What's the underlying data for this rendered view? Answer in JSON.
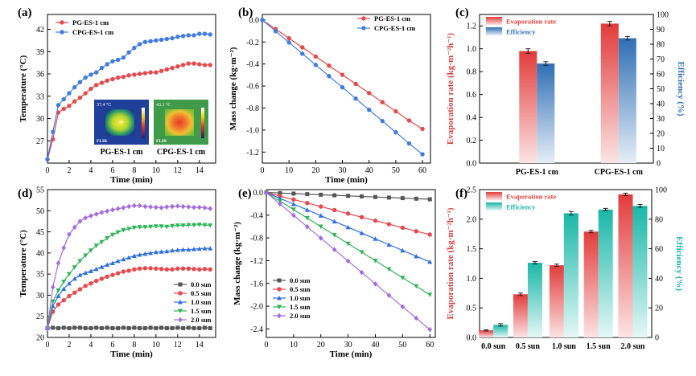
{
  "chart_data": [
    {
      "panel": "(a)",
      "type": "line",
      "xlabel": "Time (min)",
      "ylabel": "Temperature (°C)",
      "xlim": [
        0,
        15.5
      ],
      "ylim": [
        24,
        44
      ],
      "xticks": [
        0,
        2,
        4,
        6,
        8,
        10,
        12,
        14
      ],
      "yticks": [
        27,
        30,
        33,
        36,
        39,
        42
      ],
      "legend": "top-left",
      "colors": {
        "PG-ES-1 cm": "#e8474b",
        "CPG-ES-1 cm": "#3f7be3"
      },
      "series": [
        {
          "name": "PG-ES-1 cm",
          "x": [
            0,
            0.5,
            1,
            1.5,
            2,
            2.5,
            3,
            3.5,
            4,
            4.5,
            5,
            5.5,
            6,
            6.5,
            7,
            7.5,
            8,
            8.5,
            9,
            9.5,
            10,
            10.5,
            11,
            11.5,
            12,
            12.5,
            13,
            13.5,
            14,
            14.5,
            15
          ],
          "y": [
            24.5,
            27.2,
            30.8,
            31.3,
            31.7,
            32.3,
            32.8,
            33.4,
            34,
            34.5,
            34.8,
            35.1,
            35.3,
            35.5,
            35.6,
            35.8,
            35.9,
            36,
            36.1,
            36.2,
            36.2,
            36.4,
            36.6,
            36.8,
            37,
            37.2,
            37.4,
            37.4,
            37.3,
            37.2,
            37.2
          ]
        },
        {
          "name": "CPG-ES-1 cm",
          "x": [
            0,
            0.5,
            1,
            1.5,
            2,
            2.5,
            3,
            3.5,
            4,
            4.5,
            5,
            5.5,
            6,
            6.5,
            7,
            7.5,
            8,
            8.5,
            9,
            9.5,
            10,
            10.5,
            11,
            11.5,
            12,
            12.5,
            13,
            13.5,
            14,
            14.5,
            15
          ],
          "y": [
            24.5,
            28.2,
            31.8,
            32.6,
            33.4,
            34.2,
            34.9,
            35.5,
            35.9,
            36.2,
            36.8,
            37.3,
            37.7,
            37.9,
            38.2,
            38.9,
            39.5,
            40,
            40.3,
            40.4,
            40.5,
            40.6,
            40.7,
            40.8,
            41,
            41.1,
            41.2,
            41.2,
            41.4,
            41.4,
            41.3
          ]
        }
      ],
      "insets": [
        {
          "label": "PG-ES-1 cm",
          "readout": "37.4 °C",
          "brand": "FLIR"
        },
        {
          "label": "CPG-ES-1 cm",
          "readout": "43.1 °C",
          "brand": "FLIR"
        }
      ]
    },
    {
      "panel": "(b)",
      "type": "line",
      "xlabel": "Time (min)",
      "ylabel": "Mass change (kg·m⁻²)",
      "xlim": [
        0,
        63
      ],
      "ylim": [
        -1.3,
        0.05
      ],
      "xticks": [
        0,
        10,
        20,
        30,
        40,
        50,
        60
      ],
      "yticks": [
        0.0,
        -0.2,
        -0.4,
        -0.6,
        -0.8,
        -1.0,
        -1.2
      ],
      "legend": "top-right",
      "colors": {
        "PG-ES-1 cm": "#e8474b",
        "CPG-ES-1 cm": "#3f7be3"
      },
      "series": [
        {
          "name": "PG-ES-1 cm",
          "x": [
            0,
            5,
            10,
            15,
            20,
            25,
            30,
            35,
            40,
            45,
            50,
            55,
            60
          ],
          "y": [
            0,
            -0.083,
            -0.166,
            -0.249,
            -0.332,
            -0.415,
            -0.498,
            -0.581,
            -0.664,
            -0.747,
            -0.83,
            -0.913,
            -0.99
          ]
        },
        {
          "name": "CPG-ES-1 cm",
          "x": [
            0,
            5,
            10,
            15,
            20,
            25,
            30,
            35,
            40,
            45,
            50,
            55,
            60
          ],
          "y": [
            0,
            -0.102,
            -0.204,
            -0.306,
            -0.408,
            -0.51,
            -0.612,
            -0.714,
            -0.816,
            -0.918,
            -1.02,
            -1.122,
            -1.22
          ]
        }
      ]
    },
    {
      "panel": "(c)",
      "type": "bar",
      "categories": [
        "PG-ES-1 cm",
        "CPG-ES-1 cm"
      ],
      "ylabel": "Evaporation rate (kg·m⁻²h⁻¹)",
      "y2label": "Efficiency (%)",
      "ylim": [
        0,
        1.3
      ],
      "y2lim": [
        0,
        100
      ],
      "yticks": [
        0.0,
        0.2,
        0.4,
        0.6,
        0.8,
        1.0,
        1.2
      ],
      "y2ticks": [
        0,
        10,
        20,
        30,
        40,
        50,
        60,
        70,
        80,
        90,
        100
      ],
      "legend": "top-left",
      "colors": {
        "Evaporation rate": "#e23b3b",
        "Efficiency": "#2f6fb5"
      },
      "series": [
        {
          "name": "Evaporation rate",
          "axis": "left",
          "values": [
            0.98,
            1.22
          ],
          "errors": [
            0.02,
            0.02
          ]
        },
        {
          "name": "Efficiency",
          "axis": "right",
          "values": [
            67,
            84
          ],
          "errors": [
            1.2,
            1.2
          ]
        }
      ]
    },
    {
      "panel": "(d)",
      "type": "line",
      "xlabel": "Time (min)",
      "ylabel": "Temperature (°C)",
      "xlim": [
        0,
        15.5
      ],
      "ylim": [
        20,
        55
      ],
      "xticks": [
        0,
        2,
        4,
        6,
        8,
        10,
        12,
        14
      ],
      "yticks": [
        20,
        25,
        30,
        35,
        40,
        45,
        50,
        55
      ],
      "legend": "bottom-right",
      "series": [
        {
          "name": "0.0 sun",
          "marker": "square",
          "color": "#555555",
          "x": [
            0,
            0.5,
            1,
            1.5,
            2,
            2.5,
            3,
            3.5,
            4,
            4.5,
            5,
            5.5,
            6,
            6.5,
            7,
            7.5,
            8,
            8.5,
            9,
            9.5,
            10,
            10.5,
            11,
            11.5,
            12,
            12.5,
            13,
            13.5,
            14,
            14.5,
            15
          ],
          "y": [
            22.2,
            22.3,
            22.2,
            22.3,
            22.2,
            22.3,
            22.3,
            22.2,
            22.2,
            22.3,
            22.2,
            22.3,
            22.2,
            22.2,
            22.3,
            22.2,
            22.3,
            22.2,
            22.2,
            22.3,
            22.2,
            22.3,
            22.2,
            22.2,
            22.3,
            22.2,
            22.3,
            22.2,
            22.2,
            22.3,
            22.2
          ]
        },
        {
          "name": "0.5 sun",
          "marker": "circle",
          "color": "#e8474b",
          "x": [
            0,
            0.5,
            1,
            1.5,
            2,
            2.5,
            3,
            3.5,
            4,
            4.5,
            5,
            5.5,
            6,
            6.5,
            7,
            7.5,
            8,
            8.5,
            9,
            9.5,
            10,
            10.5,
            11,
            11.5,
            12,
            12.5,
            13,
            13.5,
            14,
            14.5,
            15
          ],
          "y": [
            22.2,
            26.1,
            27.8,
            28.8,
            29.8,
            30.6,
            31.4,
            32.2,
            32.8,
            33.4,
            33.9,
            34.4,
            34.8,
            35.2,
            35.6,
            35.8,
            36.1,
            36.3,
            36.4,
            36.4,
            36.3,
            36.2,
            36.1,
            36.1,
            36.3,
            36.3,
            36.3,
            36.2,
            36.1,
            36.2,
            36.1
          ]
        },
        {
          "name": "1.0 sun",
          "marker": "triangle-up",
          "color": "#2f6fe0",
          "x": [
            0,
            0.5,
            1,
            1.5,
            2,
            2.5,
            3,
            3.5,
            4,
            4.5,
            5,
            5.5,
            6,
            6.5,
            7,
            7.5,
            8,
            8.5,
            9,
            9.5,
            10,
            10.5,
            11,
            11.5,
            12,
            12.5,
            13,
            13.5,
            14,
            14.5,
            15
          ],
          "y": [
            22.2,
            27.4,
            29.8,
            31.5,
            32.8,
            33.9,
            34.8,
            35.3,
            35.7,
            36.2,
            36.7,
            37.2,
            37.6,
            38.1,
            38.5,
            38.9,
            39.3,
            39.6,
            39.8,
            40,
            40.2,
            40.3,
            40.4,
            40.6,
            40.7,
            40.8,
            40.8,
            40.9,
            41,
            41.1,
            41.1
          ]
        },
        {
          "name": "1.5 sun",
          "marker": "triangle-down",
          "color": "#2eb356",
          "x": [
            0,
            0.5,
            1,
            1.5,
            2,
            2.5,
            3,
            3.5,
            4,
            4.5,
            5,
            5.5,
            6,
            6.5,
            7,
            7.5,
            8,
            8.5,
            9,
            9.5,
            10,
            10.5,
            11,
            11.5,
            12,
            12.5,
            13,
            13.5,
            14,
            14.5,
            15
          ],
          "y": [
            22.2,
            28.5,
            31.1,
            33.2,
            35,
            36.6,
            38.1,
            39.4,
            40.6,
            41.7,
            42.6,
            43.5,
            44.3,
            44.9,
            45.4,
            45.7,
            46,
            46.1,
            46.1,
            46.2,
            46.3,
            46.3,
            46.2,
            46.4,
            46.5,
            46.5,
            46.6,
            46.6,
            46.7,
            46.6,
            46.5
          ]
        },
        {
          "name": "2.0 sun",
          "marker": "diamond",
          "color": "#a46be0",
          "x": [
            0,
            0.5,
            1,
            1.5,
            2,
            2.5,
            3,
            3.5,
            4,
            4.5,
            5,
            5.5,
            6,
            6.5,
            7,
            7.5,
            8,
            8.5,
            9,
            9.5,
            10,
            10.5,
            11,
            11.5,
            12,
            12.5,
            13,
            13.5,
            14,
            14.5,
            15
          ],
          "y": [
            22.2,
            31.9,
            37.6,
            41.2,
            44.4,
            46.1,
            47.5,
            48.3,
            48.8,
            49.2,
            49.6,
            49.9,
            50.2,
            50.5,
            50.7,
            51,
            51.2,
            51.2,
            51,
            50.9,
            50.8,
            50.7,
            50.9,
            51,
            51.1,
            51,
            50.9,
            50.8,
            50.8,
            50.7,
            50.5
          ]
        }
      ]
    },
    {
      "panel": "(e)",
      "type": "line",
      "xlabel": "Time (min)",
      "ylabel": "Mass change (kg·m⁻²)",
      "xlim": [
        0,
        62
      ],
      "ylim": [
        -2.55,
        0.05
      ],
      "xticks": [
        0,
        10,
        20,
        30,
        40,
        50,
        60
      ],
      "yticks": [
        0.0,
        -0.4,
        -0.8,
        -1.2,
        -1.6,
        -2.0,
        -2.4
      ],
      "legend": "bottom-left",
      "series": [
        {
          "name": "0.0 sun",
          "marker": "square",
          "color": "#555555",
          "x": [
            0,
            5,
            10,
            15,
            20,
            25,
            30,
            35,
            40,
            45,
            50,
            55,
            60
          ],
          "y": [
            0,
            -0.01,
            -0.02,
            -0.03,
            -0.04,
            -0.05,
            -0.06,
            -0.07,
            -0.08,
            -0.09,
            -0.1,
            -0.11,
            -0.12
          ]
        },
        {
          "name": "0.5 sun",
          "marker": "circle",
          "color": "#e8474b",
          "x": [
            0,
            5,
            10,
            15,
            20,
            25,
            30,
            35,
            40,
            45,
            50,
            55,
            60
          ],
          "y": [
            0,
            -0.062,
            -0.124,
            -0.186,
            -0.248,
            -0.31,
            -0.372,
            -0.434,
            -0.496,
            -0.558,
            -0.62,
            -0.682,
            -0.74
          ]
        },
        {
          "name": "1.0 sun",
          "marker": "triangle-up",
          "color": "#2f6fe0",
          "x": [
            0,
            5,
            10,
            15,
            20,
            25,
            30,
            35,
            40,
            45,
            50,
            55,
            60
          ],
          "y": [
            0,
            -0.102,
            -0.204,
            -0.306,
            -0.408,
            -0.51,
            -0.612,
            -0.714,
            -0.816,
            -0.918,
            -1.02,
            -1.122,
            -1.22
          ]
        },
        {
          "name": "1.5 sun",
          "marker": "triangle-down",
          "color": "#2eb356",
          "x": [
            0,
            5,
            10,
            15,
            20,
            25,
            30,
            35,
            40,
            45,
            50,
            55,
            60
          ],
          "y": [
            0,
            -0.15,
            -0.3,
            -0.45,
            -0.6,
            -0.75,
            -0.9,
            -1.05,
            -1.2,
            -1.35,
            -1.5,
            -1.65,
            -1.8
          ]
        },
        {
          "name": "2.0 sun",
          "marker": "diamond",
          "color": "#a46be0",
          "x": [
            0,
            5,
            10,
            15,
            20,
            25,
            30,
            35,
            40,
            45,
            50,
            55,
            60
          ],
          "y": [
            0,
            -0.201,
            -0.402,
            -0.603,
            -0.804,
            -1.005,
            -1.206,
            -1.407,
            -1.608,
            -1.809,
            -2.01,
            -2.211,
            -2.41
          ]
        }
      ]
    },
    {
      "panel": "(f)",
      "type": "bar",
      "categories": [
        "0.0 sun",
        "0.5 sun",
        "1.0 sun",
        "1.5 sun",
        "2.0 sun"
      ],
      "ylabel": "Evaporation rate (kg·m⁻²h⁻¹)",
      "y2label": "Efficiency (%)",
      "ylim": [
        0,
        2.5
      ],
      "y2lim": [
        0,
        100
      ],
      "yticks": [
        0.0,
        0.5,
        1.0,
        1.5,
        2.0,
        2.5
      ],
      "y2ticks": [
        0,
        20,
        40,
        60,
        80,
        100
      ],
      "legend": "top-left",
      "colors": {
        "Evaporation rate": "#e23b3b",
        "Efficiency": "#18b7a8"
      },
      "series": [
        {
          "name": "Evaporation rate",
          "axis": "left",
          "values": [
            0.12,
            0.73,
            1.22,
            1.79,
            2.42
          ],
          "errors": [
            0.01,
            0.02,
            0.02,
            0.02,
            0.02
          ]
        },
        {
          "name": "Efficiency",
          "axis": "right",
          "values": [
            8.5,
            50.5,
            84,
            86.5,
            89
          ],
          "errors": [
            0.8,
            0.8,
            1.2,
            0.8,
            1.0
          ]
        }
      ]
    }
  ]
}
